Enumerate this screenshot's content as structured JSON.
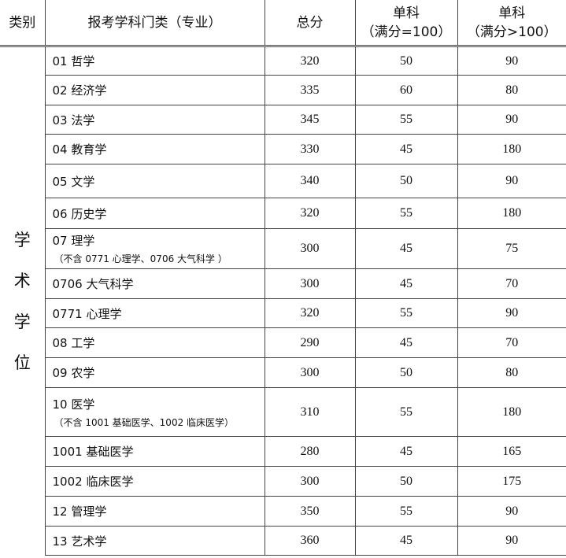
{
  "headers": {
    "category": "类别",
    "discipline": "报考学科门类（专业）",
    "total": "总分",
    "single100_line1": "单科",
    "single100_line2": "（满分=100）",
    "single_over100_line1": "单科",
    "single_over100_line2": "（满分>100）"
  },
  "category_label": "学术学位",
  "rows": [
    {
      "name": "01 哲学",
      "note": "",
      "total": "320",
      "s100": "50",
      "sOver": "90",
      "h": 37
    },
    {
      "name": "02 经济学",
      "note": "",
      "total": "335",
      "s100": "60",
      "sOver": "80",
      "h": 38
    },
    {
      "name": "03 法学",
      "note": "",
      "total": "345",
      "s100": "55",
      "sOver": "90",
      "h": 37
    },
    {
      "name": "04 教育学",
      "note": "",
      "total": "330",
      "s100": "45",
      "sOver": "180",
      "h": 38
    },
    {
      "name": "05 文学",
      "note": "",
      "total": "340",
      "s100": "50",
      "sOver": "90",
      "h": 43
    },
    {
      "name": "06 历史学",
      "note": "",
      "total": "320",
      "s100": "55",
      "sOver": "180",
      "h": 39
    },
    {
      "name": "07 理学",
      "note": "（不含 0771 心理学、0706 大气科学 ）",
      "total": "300",
      "s100": "45",
      "sOver": "75",
      "h": 51
    },
    {
      "name": "0706 大气科学",
      "note": "",
      "total": "300",
      "s100": "45",
      "sOver": "70",
      "h": 38
    },
    {
      "name": "0771 心理学",
      "note": "",
      "total": "320",
      "s100": "55",
      "sOver": "90",
      "h": 37
    },
    {
      "name": "08 工学",
      "note": "",
      "total": "290",
      "s100": "45",
      "sOver": "70",
      "h": 38
    },
    {
      "name": "09 农学",
      "note": "",
      "total": "300",
      "s100": "50",
      "sOver": "80",
      "h": 38
    },
    {
      "name": "10 医学",
      "note": "（不含 1001 基础医学、1002 临床医学）",
      "total": "310",
      "s100": "55",
      "sOver": "180",
      "h": 62
    },
    {
      "name": "1001 基础医学",
      "note": "",
      "total": "280",
      "s100": "45",
      "sOver": "165",
      "h": 38
    },
    {
      "name": "1002 临床医学",
      "note": "",
      "total": "300",
      "s100": "50",
      "sOver": "175",
      "h": 38
    },
    {
      "name": "12 管理学",
      "note": "",
      "total": "350",
      "s100": "55",
      "sOver": "90",
      "h": 38
    },
    {
      "name": "13 艺术学",
      "note": "",
      "total": "360",
      "s100": "45",
      "sOver": "90",
      "h": 37
    }
  ]
}
